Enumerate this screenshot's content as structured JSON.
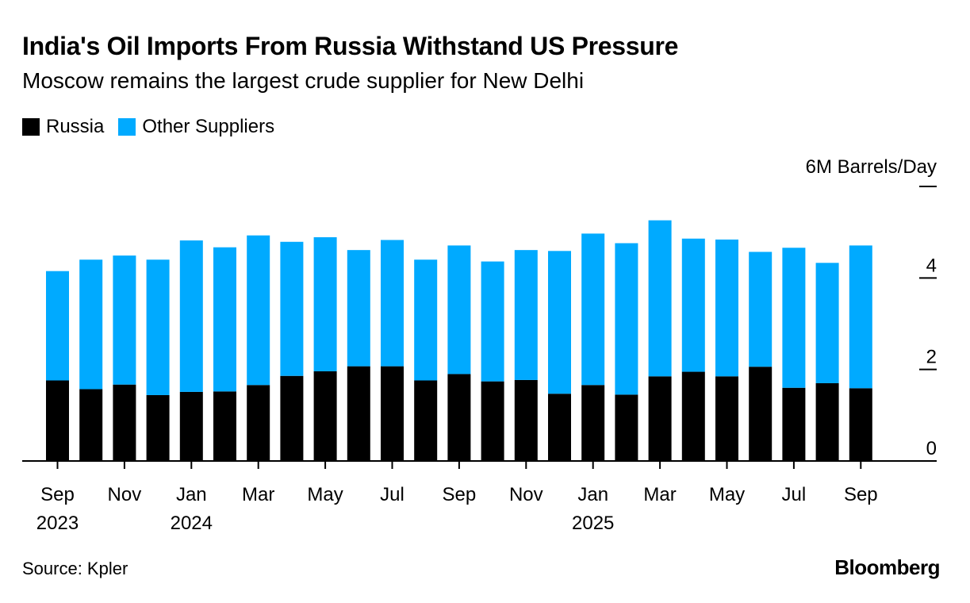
{
  "colors": {
    "russia": "#000000",
    "other": "#00aaff",
    "axis": "#000000"
  },
  "header": {
    "title": "India's Oil Imports From Russia Withstand US Pressure",
    "subtitle": "Moscow remains the largest crude supplier for New Delhi"
  },
  "legend": {
    "russia": "Russia",
    "other": "Other Suppliers"
  },
  "footer": {
    "source": "Source: Kpler",
    "brand": "Bloomberg"
  },
  "chart_data": {
    "type": "bar",
    "stacked": true,
    "title": "India's Oil Imports From Russia Withstand US Pressure",
    "subtitle": "Moscow remains the largest crude supplier for New Delhi",
    "ylabel": "6M Barrels/Day",
    "ylim": [
      0,
      6
    ],
    "yticks": [
      0,
      2,
      4
    ],
    "categories": [
      "2023-09",
      "2023-10",
      "2023-11",
      "2023-12",
      "2024-01",
      "2024-02",
      "2024-03",
      "2024-04",
      "2024-05",
      "2024-06",
      "2024-07",
      "2024-08",
      "2024-09",
      "2024-10",
      "2024-11",
      "2024-12",
      "2025-01",
      "2025-02",
      "2025-03",
      "2025-04",
      "2025-05",
      "2025-06",
      "2025-07",
      "2025-08",
      "2025-09"
    ],
    "xtick_labels": [
      {
        "index": 0,
        "month": "Sep",
        "year": "2023"
      },
      {
        "index": 2,
        "month": "Nov",
        "year": ""
      },
      {
        "index": 4,
        "month": "Jan",
        "year": "2024"
      },
      {
        "index": 6,
        "month": "Mar",
        "year": ""
      },
      {
        "index": 8,
        "month": "May",
        "year": ""
      },
      {
        "index": 10,
        "month": "Jul",
        "year": ""
      },
      {
        "index": 12,
        "month": "Sep",
        "year": ""
      },
      {
        "index": 14,
        "month": "Nov",
        "year": ""
      },
      {
        "index": 16,
        "month": "Jan",
        "year": "2025"
      },
      {
        "index": 18,
        "month": "Mar",
        "year": ""
      },
      {
        "index": 20,
        "month": "May",
        "year": ""
      },
      {
        "index": 22,
        "month": "Jul",
        "year": ""
      },
      {
        "index": 24,
        "month": "Sep",
        "year": ""
      }
    ],
    "series": [
      {
        "name": "Russia",
        "values": [
          1.76,
          1.57,
          1.67,
          1.44,
          1.51,
          1.52,
          1.66,
          1.86,
          1.96,
          2.07,
          2.07,
          1.76,
          1.9,
          1.74,
          1.77,
          1.47,
          1.66,
          1.45,
          1.85,
          1.95,
          1.85,
          2.06,
          1.6,
          1.7,
          1.59
        ]
      },
      {
        "name": "Other Suppliers",
        "values": [
          2.39,
          2.83,
          2.82,
          2.96,
          3.31,
          3.15,
          3.27,
          2.93,
          2.93,
          2.54,
          2.76,
          2.64,
          2.81,
          2.62,
          2.84,
          3.12,
          3.31,
          3.31,
          3.41,
          2.91,
          2.99,
          2.51,
          3.06,
          2.63,
          3.12
        ]
      }
    ]
  }
}
